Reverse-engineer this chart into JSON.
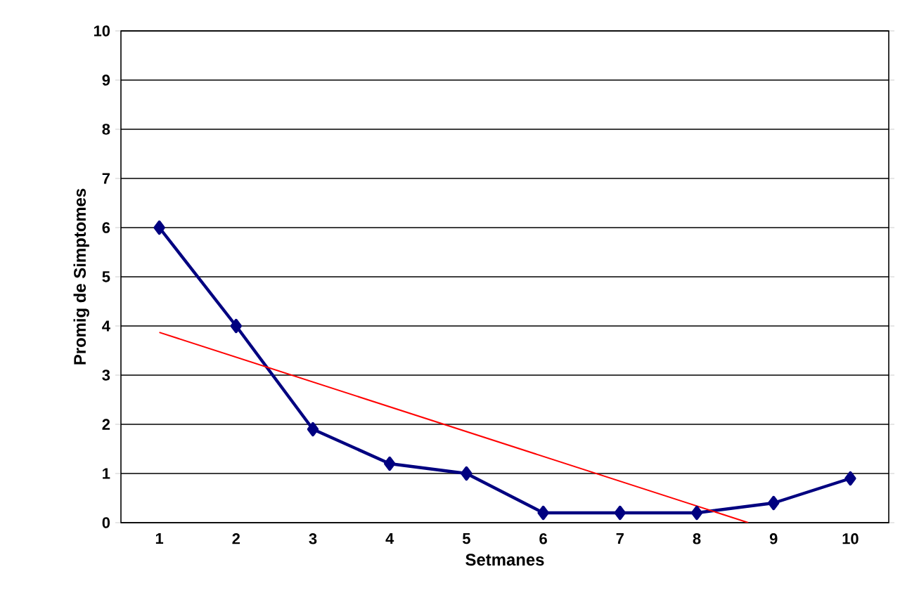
{
  "chart_data": {
    "type": "line",
    "xlabel": "Setmanes",
    "ylabel": "Promig de Simptomes",
    "x": [
      1,
      2,
      3,
      4,
      5,
      6,
      7,
      8,
      9,
      10
    ],
    "xlim": [
      0.5,
      10.5
    ],
    "xticks": [
      1,
      2,
      3,
      4,
      5,
      6,
      7,
      8,
      9,
      10
    ],
    "ylim": [
      0,
      10
    ],
    "yticks": [
      0,
      1,
      2,
      3,
      4,
      5,
      6,
      7,
      8,
      9,
      10
    ],
    "grid": "y",
    "marker": "diamond",
    "line_style": "solid",
    "series": [
      {
        "color": "#000080",
        "values": [
          6,
          4,
          1.9,
          1.2,
          1.0,
          0.2,
          0.2,
          0.2,
          0.4,
          0.9
        ]
      },
      {
        "type": "line",
        "color": "#ff0000",
        "marker": "none",
        "x": [
          1,
          8.67
        ],
        "values": [
          3.87,
          0
        ]
      }
    ]
  }
}
